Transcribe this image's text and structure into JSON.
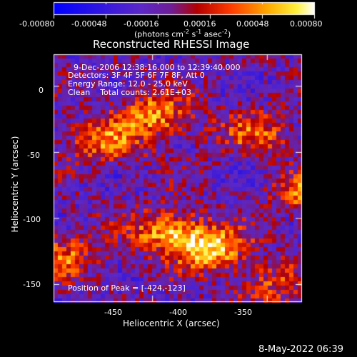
{
  "colorbar": {
    "tick_labels": [
      "-0.00080",
      "-0.00048",
      "-0.00016",
      "0.00016",
      "0.00048",
      "0.00080"
    ],
    "tick_values": [
      -0.0008,
      -0.00048,
      -0.00016,
      0.00016,
      0.00048,
      0.0008
    ],
    "range": [
      -0.0008,
      0.0008
    ],
    "units_prefix": "(photons cm",
    "units_exp1": "-2",
    "units_mid": " s",
    "units_exp2": "-1",
    "units_mid2": " asec",
    "units_exp3": "-2",
    "units_suffix": ")"
  },
  "chart_data": {
    "type": "heatmap",
    "title": "Reconstructed RHESSI Image",
    "xlabel": "Heliocentric X (arcsec)",
    "ylabel": "Heliocentric Y (arcsec)",
    "xlim": [
      -493,
      -385
    ],
    "ylim": [
      -163,
      24
    ],
    "x_ticks": [
      -450,
      -400,
      -350
    ],
    "y_ticks": [
      0,
      -50,
      -100,
      -150
    ],
    "colormap": "hot-with-blue-purple-negatives",
    "annotations": [
      "9-Dec-2006 12:38:16.000 to 12:39:40.000",
      "Detectors: 3F 4F 5F 6F 7F 8F, Att 0",
      "Energy Range: 12.0 - 25.0 keV",
      "Clean    Total counts: 2.61E+03"
    ],
    "peak_label": "Position of Peak = [-424,-123]",
    "peak": [
      -424,
      -123
    ],
    "sources": [
      {
        "x": -424,
        "y": -123,
        "intensity": 0.0008
      },
      {
        "x": -378,
        "y": -80,
        "intensity": 0.00075
      },
      {
        "x": -443,
        "y": -110,
        "intensity": 0.0007
      },
      {
        "x": -448,
        "y": -22,
        "intensity": 0.00065
      },
      {
        "x": -470,
        "y": -42,
        "intensity": 0.00055
      },
      {
        "x": -360,
        "y": -140,
        "intensity": 0.0005
      },
      {
        "x": -488,
        "y": -130,
        "intensity": 0.0005
      },
      {
        "x": -405,
        "y": -35,
        "intensity": 0.00045
      },
      {
        "x": -398,
        "y": -150,
        "intensity": 0.0004
      }
    ]
  },
  "timestamp": "8-May-2022 06:39"
}
